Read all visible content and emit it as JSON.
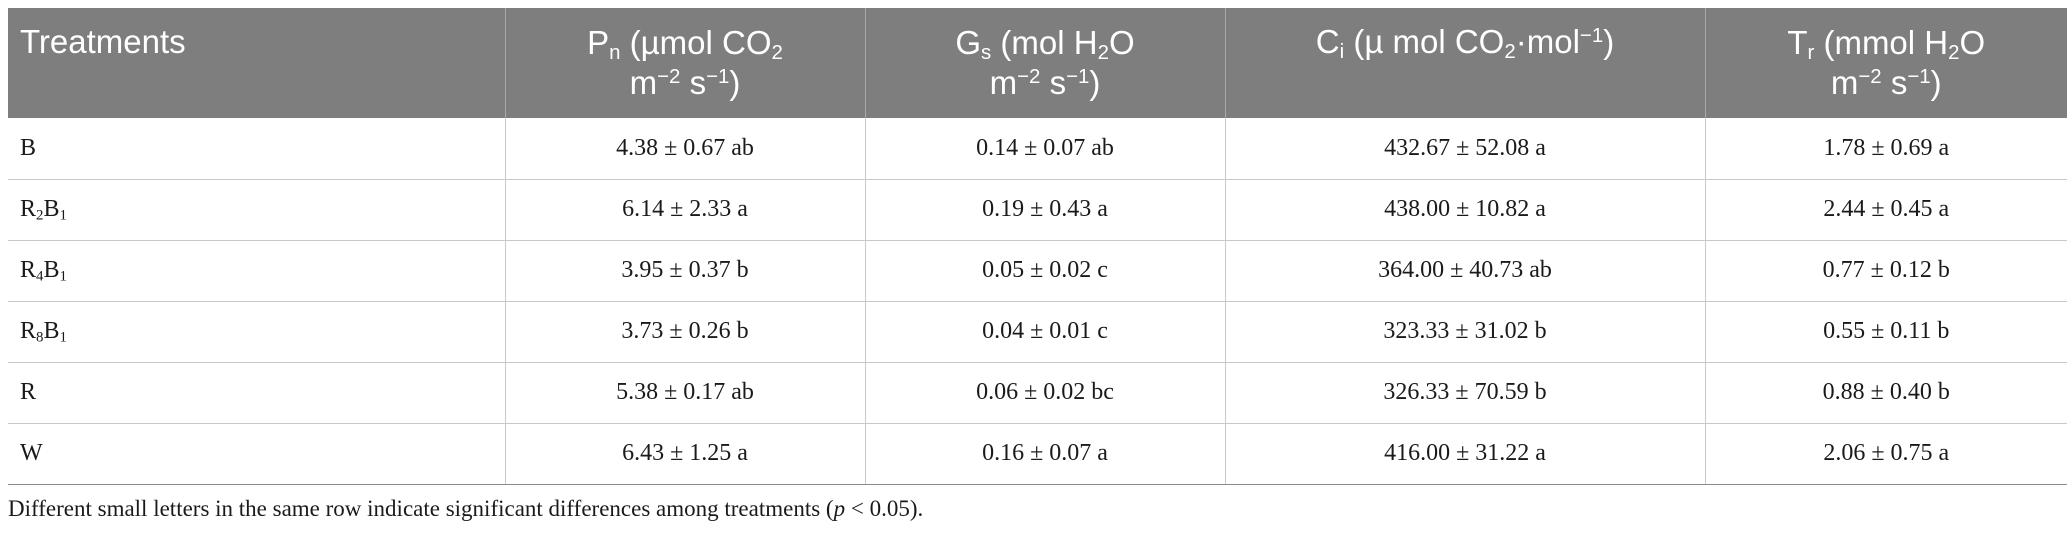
{
  "table": {
    "headers": [
      {
        "line1": "Treatments"
      },
      {
        "line1_a": "P",
        "line1_sub": "n",
        "line1_b": " (µmol CO",
        "line1_sub2": "2",
        "line2_a": "m",
        "line2_sup": "−2",
        "line2_b": " s",
        "line2_sup2": "−1",
        "line2_c": ")"
      },
      {
        "line1_a": "G",
        "line1_sub": "s",
        "line1_b": " (mol H",
        "line1_sub2": "2",
        "line1_c": "O",
        "line2_a": "m",
        "line2_sup": "−2",
        "line2_b": " s",
        "line2_sup2": "−1",
        "line2_c": ")"
      },
      {
        "line1_a": "C",
        "line1_sub": "i",
        "line1_b": " (µ mol CO",
        "line1_sub2": "2",
        "line1_c": "·mol",
        "line1_sup": "−1",
        "line1_d": ")"
      },
      {
        "line1_a": "T",
        "line1_sub": "r",
        "line1_b": " (mmol H",
        "line1_sub2": "2",
        "line1_c": "O",
        "line2_a": "m",
        "line2_sup": "−2",
        "line2_b": " s",
        "line2_sup2": "−1",
        "line2_c": ")"
      }
    ],
    "rows": [
      {
        "label_a": "B",
        "label_sub1": "",
        "label_b": "",
        "label_sub2": "",
        "pn": "4.38 ± 0.67 ab",
        "gs": "0.14 ± 0.07 ab",
        "ci": "432.67 ± 52.08 a",
        "tr": "1.78 ± 0.69 a"
      },
      {
        "label_a": "R",
        "label_sub1": "2",
        "label_b": "B",
        "label_sub2": "1",
        "pn": "6.14 ± 2.33 a",
        "gs": "0.19 ± 0.43 a",
        "ci": "438.00 ± 10.82 a",
        "tr": "2.44 ± 0.45 a"
      },
      {
        "label_a": "R",
        "label_sub1": "4",
        "label_b": "B",
        "label_sub2": "1",
        "pn": "3.95 ± 0.37 b",
        "gs": "0.05 ± 0.02 c",
        "ci": "364.00 ± 40.73 ab",
        "tr": "0.77 ± 0.12 b"
      },
      {
        "label_a": "R",
        "label_sub1": "8",
        "label_b": "B",
        "label_sub2": "1",
        "pn": "3.73 ± 0.26 b",
        "gs": "0.04 ± 0.01 c",
        "ci": "323.33 ± 31.02 b",
        "tr": "0.55 ± 0.11 b"
      },
      {
        "label_a": "R",
        "label_sub1": "",
        "label_b": "",
        "label_sub2": "",
        "pn": "5.38 ± 0.17 ab",
        "gs": "0.06 ± 0.02 bc",
        "ci": "326.33 ± 70.59 b",
        "tr": "0.88 ± 0.40 b"
      },
      {
        "label_a": "W",
        "label_sub1": "",
        "label_b": "",
        "label_sub2": "",
        "pn": "6.43 ± 1.25 a",
        "gs": "0.16 ± 0.07 a",
        "ci": "416.00 ± 31.22 a",
        "tr": "2.06 ± 0.75 a"
      }
    ]
  },
  "footnote": {
    "text_a": "Different small letters in the same row indicate significant differences among treatments (",
    "italic": "p",
    "text_b": " < 0.05)."
  },
  "colors": {
    "header_background": "#7d7e7d",
    "header_text": "#ffffff",
    "grid_lines": "#c8c8c8"
  }
}
